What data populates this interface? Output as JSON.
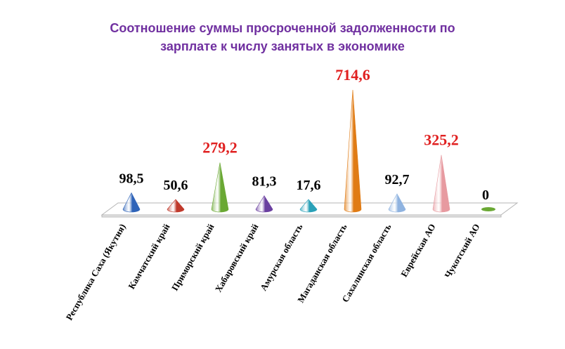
{
  "chart_data": {
    "type": "bar",
    "title_line1": "Соотношение суммы просроченной задолженности по",
    "title_line2": "зарплате к числу занятых в экономике",
    "categories": [
      "Республика Саха (Якутия)",
      "Камчатский край",
      "Приморский край",
      "Хабаровский край",
      "Амурская область",
      "Магаданская область",
      "Сахалинская область",
      "Еврейская АО",
      "Чукотский АО"
    ],
    "values": [
      98.5,
      50.6,
      279.2,
      81.3,
      17.6,
      714.6,
      92.7,
      325.2,
      0
    ],
    "value_labels": [
      "98,5",
      "50,6",
      "279,2",
      "81,3",
      "17,6",
      "714,6",
      "92,7",
      "325,2",
      "0"
    ],
    "bar_colors": [
      "#2e63b8",
      "#c0392b",
      "#6aa834",
      "#6a3fa0",
      "#2aa1b8",
      "#e07b14",
      "#8fb3e0",
      "#e79aa0",
      "#6aa834"
    ],
    "label_colors": [
      "#000000",
      "#000000",
      "#e02020",
      "#000000",
      "#000000",
      "#e02020",
      "#000000",
      "#e02020",
      "#000000"
    ],
    "shape": "cone",
    "ylim": [
      0,
      714.6
    ],
    "grid": false,
    "legend": "none"
  }
}
